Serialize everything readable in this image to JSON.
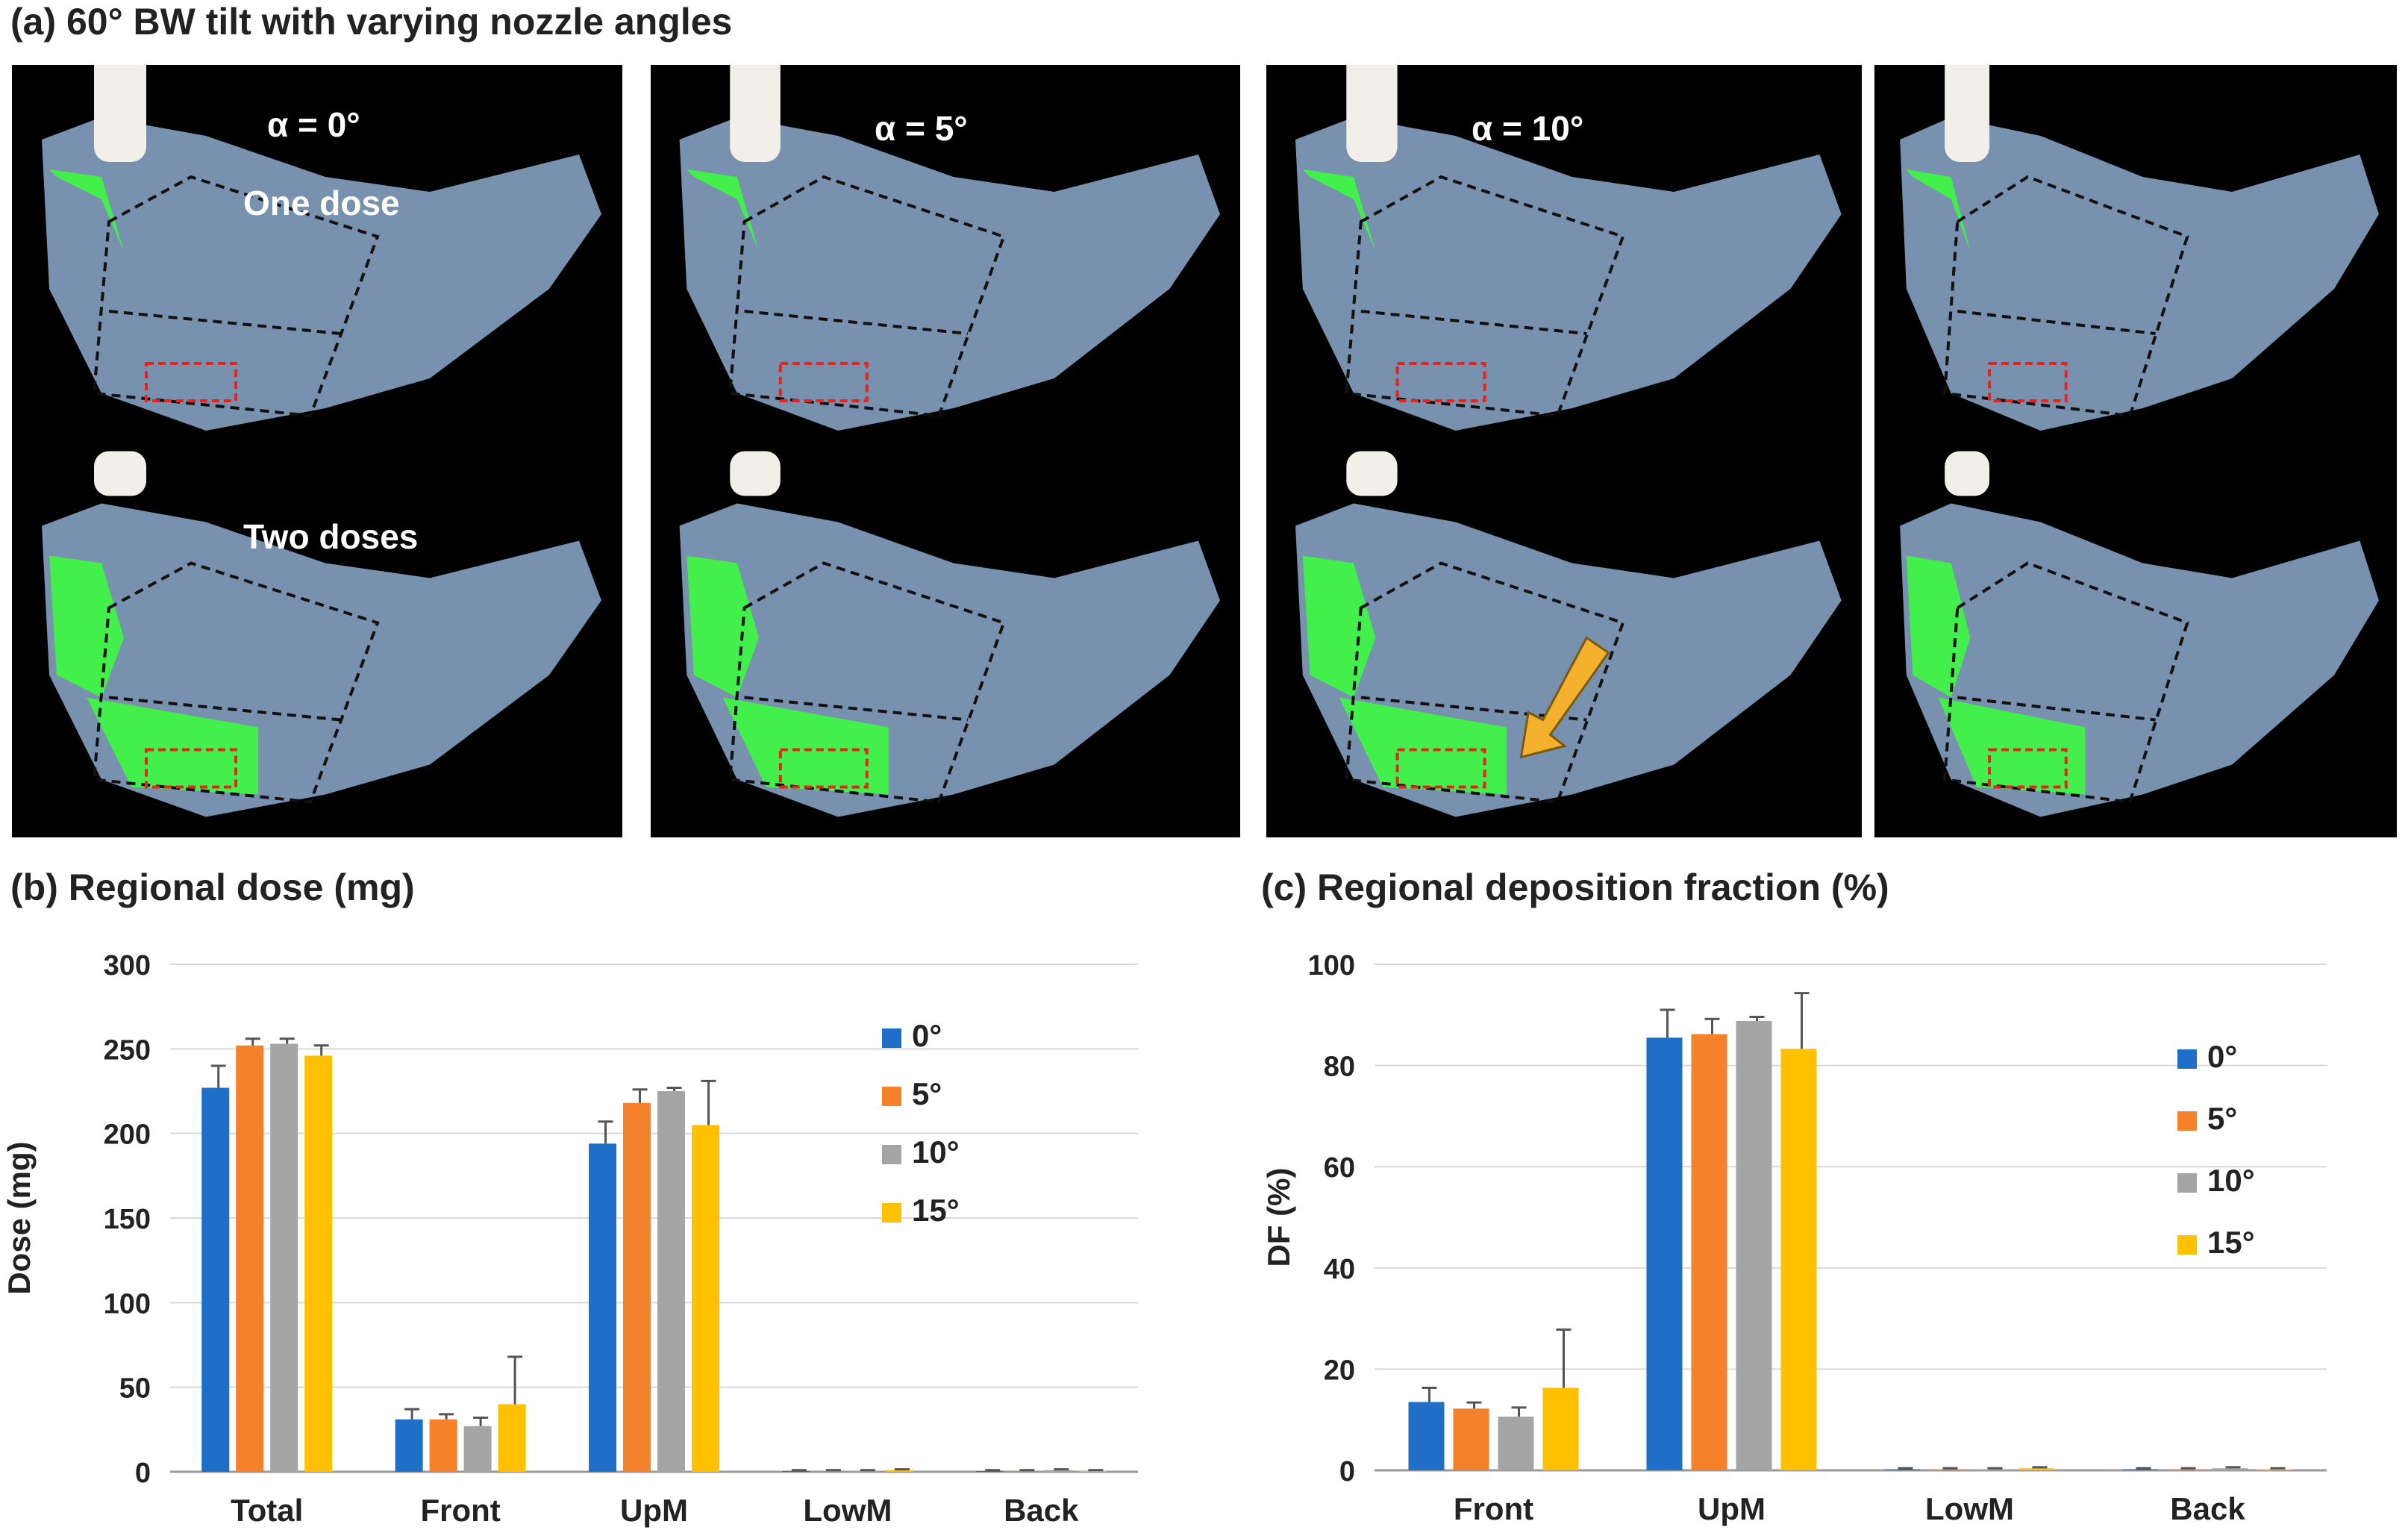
{
  "panel_a": {
    "title": "(a) 60° BW tilt with varying nozzle angles",
    "alpha_labels": [
      "α = 0°",
      "α = 5°",
      "α = 10°"
    ],
    "row_labels": {
      "one": "One dose",
      "two": "Two doses"
    }
  },
  "colors": {
    "series": [
      "#1f6fc8",
      "#f5822a",
      "#a5a5a5",
      "#ffc000"
    ],
    "grid": "#d9d9d9",
    "axis": "#9a9a9a",
    "error": "#555555",
    "photo_bg": "#000000",
    "green": "#39ff3a",
    "nasal_cast": "#9fc2ea",
    "red_box": "#e8231b",
    "arrow": "#f3b12e"
  },
  "chart_data": [
    {
      "type": "bar",
      "title": "(b) Regional dose (mg)",
      "xlabel": "",
      "ylabel": "Dose (mg)",
      "ylim": [
        0,
        300
      ],
      "yticks": [
        "0",
        "50",
        "100",
        "150",
        "200",
        "250",
        "300"
      ],
      "categories": [
        "Total",
        "Front",
        "UpM",
        "LowM",
        "Back"
      ],
      "legend_position": "right",
      "series": [
        {
          "name": "0°",
          "values": [
            227,
            31,
            194,
            0.5,
            0.5
          ],
          "errors": [
            13,
            6,
            13,
            0.5,
            0.5
          ]
        },
        {
          "name": "5°",
          "values": [
            252,
            31,
            218,
            0.5,
            0.5
          ],
          "errors": [
            4,
            3,
            8,
            0.5,
            0.5
          ]
        },
        {
          "name": "10°",
          "values": [
            253,
            27,
            225,
            0.5,
            1.0
          ],
          "errors": [
            3,
            5,
            2,
            0.5,
            0.5
          ]
        },
        {
          "name": "15°",
          "values": [
            246,
            40,
            205,
            1.0,
            0.5
          ],
          "errors": [
            6,
            28,
            26,
            0.5,
            0.5
          ]
        }
      ]
    },
    {
      "type": "bar",
      "title": "(c) Regional deposition fraction (%)",
      "xlabel": "",
      "ylabel": "DF (%)",
      "ylim": [
        0,
        100
      ],
      "yticks": [
        "0",
        "20",
        "40",
        "60",
        "80",
        "100"
      ],
      "categories": [
        "Front",
        "UpM",
        "LowM",
        "Back"
      ],
      "legend_position": "right",
      "series": [
        {
          "name": "0°",
          "values": [
            13.5,
            85.5,
            0.2,
            0.2
          ],
          "errors": [
            2.8,
            5.5,
            0.2,
            0.2
          ]
        },
        {
          "name": "5°",
          "values": [
            12.2,
            86.2,
            0.2,
            0.2
          ],
          "errors": [
            1.2,
            3.0,
            0.2,
            0.2
          ]
        },
        {
          "name": "10°",
          "values": [
            10.6,
            88.8,
            0.2,
            0.4
          ],
          "errors": [
            1.8,
            0.8,
            0.2,
            0.2
          ]
        },
        {
          "name": "15°",
          "values": [
            16.3,
            83.3,
            0.4,
            0.2
          ],
          "errors": [
            11.5,
            11.0,
            0.2,
            0.2
          ]
        }
      ]
    }
  ]
}
